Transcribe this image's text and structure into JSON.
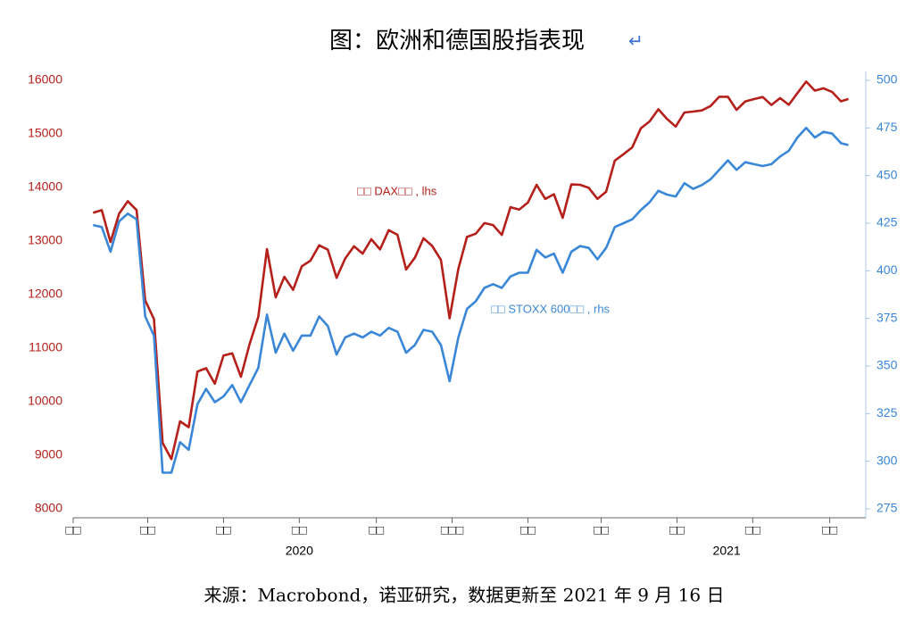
{
  "chart_data": {
    "type": "line",
    "title": "图：欧洲和德国股指表现",
    "source": "来源：Macrobond，诺亚研究，数据更新至 2021 年 9 月 16 日",
    "x": [
      "2020-01-17",
      "2020-01-24",
      "2020-01-31",
      "2020-02-07",
      "2020-02-14",
      "2020-02-21",
      "2020-02-28",
      "2020-03-06",
      "2020-03-13",
      "2020-03-20",
      "2020-03-27",
      "2020-04-03",
      "2020-04-10",
      "2020-04-17",
      "2020-04-24",
      "2020-05-01",
      "2020-05-08",
      "2020-05-15",
      "2020-05-22",
      "2020-05-29",
      "2020-06-05",
      "2020-06-12",
      "2020-06-19",
      "2020-06-26",
      "2020-07-03",
      "2020-07-10",
      "2020-07-17",
      "2020-07-24",
      "2020-07-31",
      "2020-08-07",
      "2020-08-14",
      "2020-08-21",
      "2020-08-28",
      "2020-09-04",
      "2020-09-11",
      "2020-09-18",
      "2020-09-25",
      "2020-10-02",
      "2020-10-09",
      "2020-10-16",
      "2020-10-23",
      "2020-10-30",
      "2020-11-06",
      "2020-11-13",
      "2020-11-20",
      "2020-11-27",
      "2020-12-04",
      "2020-12-11",
      "2020-12-18",
      "2020-12-25",
      "2021-01-01",
      "2021-01-08",
      "2021-01-15",
      "2021-01-22",
      "2021-01-29",
      "2021-02-05",
      "2021-02-12",
      "2021-02-19",
      "2021-02-26",
      "2021-03-05",
      "2021-03-12",
      "2021-03-19",
      "2021-03-26",
      "2021-04-02",
      "2021-04-09",
      "2021-04-16",
      "2021-04-23",
      "2021-04-30",
      "2021-05-07",
      "2021-05-14",
      "2021-05-21",
      "2021-05-28",
      "2021-06-04",
      "2021-06-11",
      "2021-06-18",
      "2021-06-25",
      "2021-07-02",
      "2021-07-09",
      "2021-07-16",
      "2021-07-23",
      "2021-07-30",
      "2021-08-06",
      "2021-08-13",
      "2021-08-20",
      "2021-08-27",
      "2021-09-03",
      "2021-09-10",
      "2021-09-16"
    ],
    "series": [
      {
        "name": "□□ DAX□□ , lhs",
        "color": "#b5201b",
        "axis": "y",
        "values": [
          13526,
          13577,
          12982,
          13513,
          13744,
          13579,
          11890,
          11541,
          9232,
          8929,
          9633,
          9525,
          10564,
          10625,
          10336,
          10861,
          10904,
          10465,
          11074,
          11587,
          12848,
          11949,
          12331,
          12089,
          12528,
          12633,
          12920,
          12838,
          12313,
          12675,
          12901,
          12765,
          13033,
          12843,
          13203,
          13116,
          12469,
          12689,
          13051,
          12909,
          12646,
          11556,
          12480,
          13077,
          13137,
          13335,
          13298,
          13114,
          13631,
          13587,
          13719,
          14050,
          13787,
          13874,
          13433,
          14056,
          14050,
          13993,
          13786,
          13920,
          14502,
          14621,
          14749,
          15107,
          15234,
          15460,
          15280,
          15136,
          15400,
          15417,
          15438,
          15520,
          15693,
          15693,
          15448,
          15607,
          15650,
          15688,
          15540,
          15669,
          15544,
          15761,
          15977,
          15808,
          15852,
          15781,
          15609,
          15652
        ]
      },
      {
        "name": "□□ STOXX 600□□ , rhs",
        "color": "#3a87d8",
        "axis": "y2",
        "values": [
          424,
          423,
          410,
          426,
          430,
          427,
          376,
          366,
          294,
          294,
          310,
          306,
          330,
          338,
          331,
          334,
          340,
          331,
          340,
          349,
          377,
          357,
          367,
          358,
          366,
          366,
          376,
          371,
          356,
          365,
          367,
          365,
          368,
          366,
          370,
          368,
          357,
          361,
          369,
          368,
          361,
          342,
          365,
          380,
          384,
          391,
          393,
          391,
          397,
          399,
          399,
          411,
          407,
          409,
          399,
          410,
          413,
          412,
          406,
          412,
          423,
          425,
          427,
          432,
          436,
          442,
          440,
          439,
          446,
          443,
          445,
          448,
          453,
          458,
          453,
          457,
          456,
          455,
          456,
          460,
          463,
          470,
          475,
          470,
          473,
          472,
          467,
          466
        ]
      }
    ],
    "xlim": [
      "2020-01-01",
      "2021-09-30"
    ],
    "xticks": [
      {
        "value": "2020-01-01",
        "label": "□□"
      },
      {
        "value": "2020-03-01",
        "label": "□□"
      },
      {
        "value": "2020-05-01",
        "label": "□□"
      },
      {
        "value": "2020-07-01",
        "label": "□□"
      },
      {
        "value": "2020-09-01",
        "label": "□□"
      },
      {
        "value": "2020-11-01",
        "label": "□□□"
      },
      {
        "value": "2021-01-01",
        "label": "□□"
      },
      {
        "value": "2021-03-01",
        "label": "□□"
      },
      {
        "value": "2021-05-01",
        "label": "□□"
      },
      {
        "value": "2021-07-01",
        "label": "□□"
      },
      {
        "value": "2021-09-01",
        "label": "□□"
      }
    ],
    "years": [
      {
        "value": "2020-07-01",
        "label": "2020"
      },
      {
        "value": "2021-06-10",
        "label": "2021"
      }
    ],
    "ylim": [
      8000,
      16000
    ],
    "yticks": [
      8000,
      9000,
      10000,
      11000,
      12000,
      13000,
      14000,
      15000,
      16000
    ],
    "y2lim": [
      275,
      500
    ],
    "y2ticks": [
      275,
      300,
      325,
      350,
      375,
      400,
      425,
      450,
      475,
      500
    ],
    "grid": false
  }
}
